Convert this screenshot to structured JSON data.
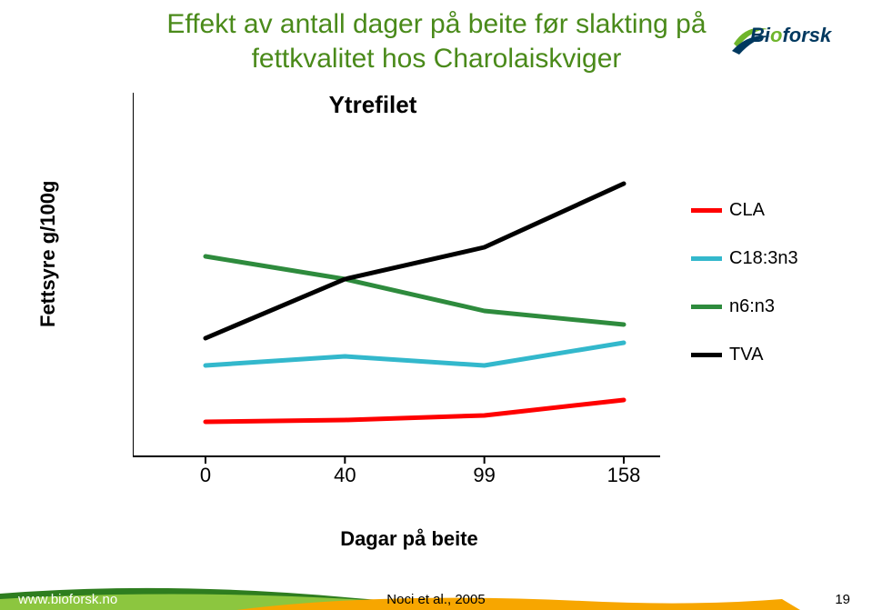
{
  "title_line1": "Effekt av antall dager på beite før slakting på",
  "title_line2": "fettkvalitet hos Charolaiskviger",
  "title_color": "#4a8a1a",
  "title_fontsize": 30,
  "logo": {
    "text_prefix": "Bi",
    "text_o": "o",
    "text_suffix": "forsk",
    "text_color": "#00385f",
    "o_color": "#6fb52c",
    "swoosh_green": "#6fb52c",
    "swoosh_blue": "#00385f"
  },
  "chart": {
    "type": "line",
    "chart_title": "Ytrefilet",
    "chart_title_fontsize": 26,
    "y_label": "Fettsyre g/100g",
    "x_label": "Dagar på beite",
    "label_fontsize": 22,
    "background_color": "#ffffff",
    "axis_color": "#000000",
    "ylim": [
      0,
      4
    ],
    "ytick_step": 1,
    "yticks": [
      0,
      1,
      2,
      3,
      4
    ],
    "x_categories": [
      "0",
      "40",
      "99",
      "158"
    ],
    "line_width": 5,
    "series": [
      {
        "name": "CLA",
        "color": "#ff0000",
        "values": [
          0.38,
          0.4,
          0.45,
          0.62
        ]
      },
      {
        "name": "C18:3n3",
        "color": "#33b8cc",
        "values": [
          1.0,
          1.1,
          1.0,
          1.25
        ]
      },
      {
        "name": "n6:n3",
        "color": "#2e8b3d",
        "values": [
          2.2,
          1.95,
          1.6,
          1.45
        ]
      },
      {
        "name": "TVA",
        "color": "#000000",
        "values": [
          1.3,
          1.95,
          2.3,
          3.0
        ]
      }
    ],
    "legend": {
      "position": "right",
      "fontsize": 20,
      "items": [
        {
          "label": "CLA",
          "color": "#ff0000"
        },
        {
          "label": "C18:3n3",
          "color": "#33b8cc"
        },
        {
          "label": "n6:n3",
          "color": "#2e8b3d"
        },
        {
          "label": "TVA",
          "color": "#000000"
        }
      ]
    }
  },
  "footer": {
    "link": "www.bioforsk.no",
    "center": "Noci et al., 2005",
    "page": "19",
    "band_green": "#8cc63f",
    "band_orange": "#f7a600",
    "band_darkgreen": "#2e7d1f"
  }
}
